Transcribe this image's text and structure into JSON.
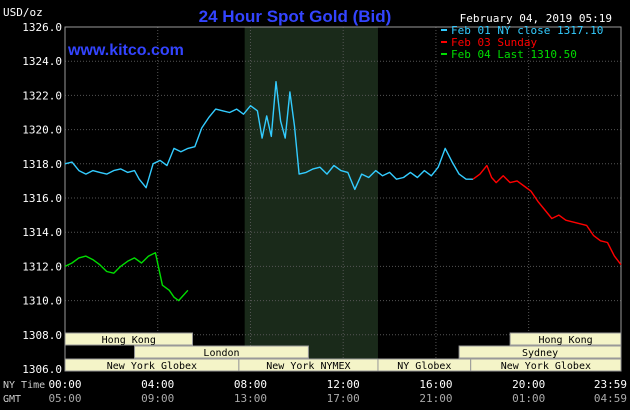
{
  "header": {
    "unit_label": "USD/oz",
    "title": "24 Hour Spot Gold (Bid)",
    "datetime": "February 04, 2019 05:19",
    "watermark": "www.kitco.com"
  },
  "legend": [
    {
      "text": "Feb 01 NY close 1317.10",
      "color": "#33ccff"
    },
    {
      "text": "Feb 03 Sunday",
      "color": "#ff0000"
    },
    {
      "text": "Feb 04 Last 1310.50",
      "color": "#00dd00"
    }
  ],
  "axes": {
    "row1_label": "NY Time",
    "row2_label": "GMT",
    "x_ticks": [
      {
        "hour": 0,
        "ny": "00:00",
        "gmt": "05:00"
      },
      {
        "hour": 4,
        "ny": "04:00",
        "gmt": "09:00"
      },
      {
        "hour": 8,
        "ny": "08:00",
        "gmt": "13:00"
      },
      {
        "hour": 12,
        "ny": "12:00",
        "gmt": "17:00"
      },
      {
        "hour": 16,
        "ny": "16:00",
        "gmt": "21:00"
      },
      {
        "hour": 20,
        "ny": "20:00",
        "gmt": "01:00"
      },
      {
        "hour": 23.983,
        "ny": "23:59",
        "gmt": "04:59"
      }
    ],
    "y_ticks": [
      "1326.0",
      "1324.0",
      "1322.0",
      "1320.0",
      "1318.0",
      "1316.0",
      "1314.0",
      "1312.0",
      "1310.0",
      "1308.0",
      "1306.0"
    ]
  },
  "sessions": {
    "row1": [
      {
        "label": "Hong Kong",
        "start": 0,
        "end": 5.5
      },
      {
        "label": "Hong Kong",
        "start": 19.2,
        "end": 23.983
      }
    ],
    "row2": [
      {
        "label": "London",
        "start": 3,
        "end": 10.5
      },
      {
        "label": "Sydney",
        "start": 17,
        "end": 23.983
      }
    ],
    "row3": [
      {
        "label": "New York Globex",
        "start": 0,
        "end": 7.5
      },
      {
        "label": "New York NYMEX",
        "start": 7.5,
        "end": 13.5
      },
      {
        "label": "NY Globex",
        "start": 13.5,
        "end": 17.5
      },
      {
        "label": "New York Globex",
        "start": 17.5,
        "end": 23.983
      }
    ]
  },
  "highlight_band": {
    "start": 7.75,
    "end": 13.5,
    "color": "#1a2a1a"
  },
  "chart_data": {
    "type": "line",
    "title": "24 Hour Spot Gold (Bid)",
    "xlabel": "NY Time / GMT",
    "ylabel": "USD/oz",
    "xlim": [
      0,
      23.983
    ],
    "ylim": [
      1306,
      1326
    ],
    "grid": true,
    "legend_placement": "top-right",
    "series": [
      {
        "name": "Feb 01 NY close 1317.10",
        "color": "#33ccff",
        "x": [
          0,
          0.3,
          0.6,
          0.9,
          1.2,
          1.5,
          1.8,
          2.1,
          2.4,
          2.7,
          3.0,
          3.2,
          3.5,
          3.8,
          4.1,
          4.4,
          4.7,
          5.0,
          5.3,
          5.6,
          5.9,
          6.2,
          6.5,
          6.8,
          7.1,
          7.4,
          7.7,
          8.0,
          8.3,
          8.5,
          8.7,
          8.9,
          9.1,
          9.3,
          9.5,
          9.7,
          9.9,
          10.1,
          10.4,
          10.7,
          11.0,
          11.3,
          11.6,
          11.9,
          12.2,
          12.5,
          12.8,
          13.1,
          13.4,
          13.7,
          14.0,
          14.3,
          14.6,
          14.9,
          15.2,
          15.5,
          15.8,
          16.1,
          16.4,
          16.7,
          17.0,
          17.3,
          17.6
        ],
        "y": [
          1318.0,
          1318.1,
          1317.6,
          1317.4,
          1317.6,
          1317.5,
          1317.4,
          1317.6,
          1317.7,
          1317.5,
          1317.6,
          1317.1,
          1316.6,
          1318.0,
          1318.2,
          1317.9,
          1318.9,
          1318.7,
          1318.9,
          1319.0,
          1320.1,
          1320.7,
          1321.2,
          1321.1,
          1321.0,
          1321.2,
          1320.9,
          1321.4,
          1321.1,
          1319.5,
          1320.8,
          1319.6,
          1322.8,
          1320.5,
          1319.5,
          1322.2,
          1320.2,
          1317.4,
          1317.5,
          1317.7,
          1317.8,
          1317.4,
          1317.9,
          1317.6,
          1317.5,
          1316.5,
          1317.4,
          1317.2,
          1317.6,
          1317.3,
          1317.5,
          1317.1,
          1317.2,
          1317.5,
          1317.2,
          1317.6,
          1317.3,
          1317.8,
          1318.9,
          1318.1,
          1317.4,
          1317.1,
          1317.1
        ]
      },
      {
        "name": "Feb 03 Sunday",
        "color": "#ff0000",
        "x": [
          17.6,
          17.9,
          18.2,
          18.4,
          18.6,
          18.9,
          19.2,
          19.5,
          19.8,
          20.1,
          20.4,
          20.7,
          21.0,
          21.3,
          21.6,
          21.9,
          22.2,
          22.5,
          22.8,
          23.1,
          23.4,
          23.7,
          23.983
        ],
        "y": [
          1317.1,
          1317.4,
          1317.9,
          1317.2,
          1316.9,
          1317.3,
          1316.9,
          1317.0,
          1316.7,
          1316.4,
          1315.8,
          1315.3,
          1314.8,
          1315.0,
          1314.7,
          1314.6,
          1314.5,
          1314.4,
          1313.8,
          1313.5,
          1313.4,
          1312.6,
          1312.1
        ]
      },
      {
        "name": "Feb 04 Last 1310.50",
        "color": "#00dd00",
        "x": [
          0,
          0.3,
          0.6,
          0.9,
          1.2,
          1.5,
          1.8,
          2.1,
          2.4,
          2.7,
          3.0,
          3.3,
          3.6,
          3.9,
          4.2,
          4.5,
          4.7,
          4.9,
          5.1,
          5.3
        ],
        "y": [
          1312.0,
          1312.2,
          1312.5,
          1312.6,
          1312.4,
          1312.1,
          1311.7,
          1311.6,
          1312.0,
          1312.3,
          1312.5,
          1312.2,
          1312.6,
          1312.8,
          1310.9,
          1310.6,
          1310.2,
          1310.0,
          1310.3,
          1310.6
        ]
      }
    ]
  }
}
